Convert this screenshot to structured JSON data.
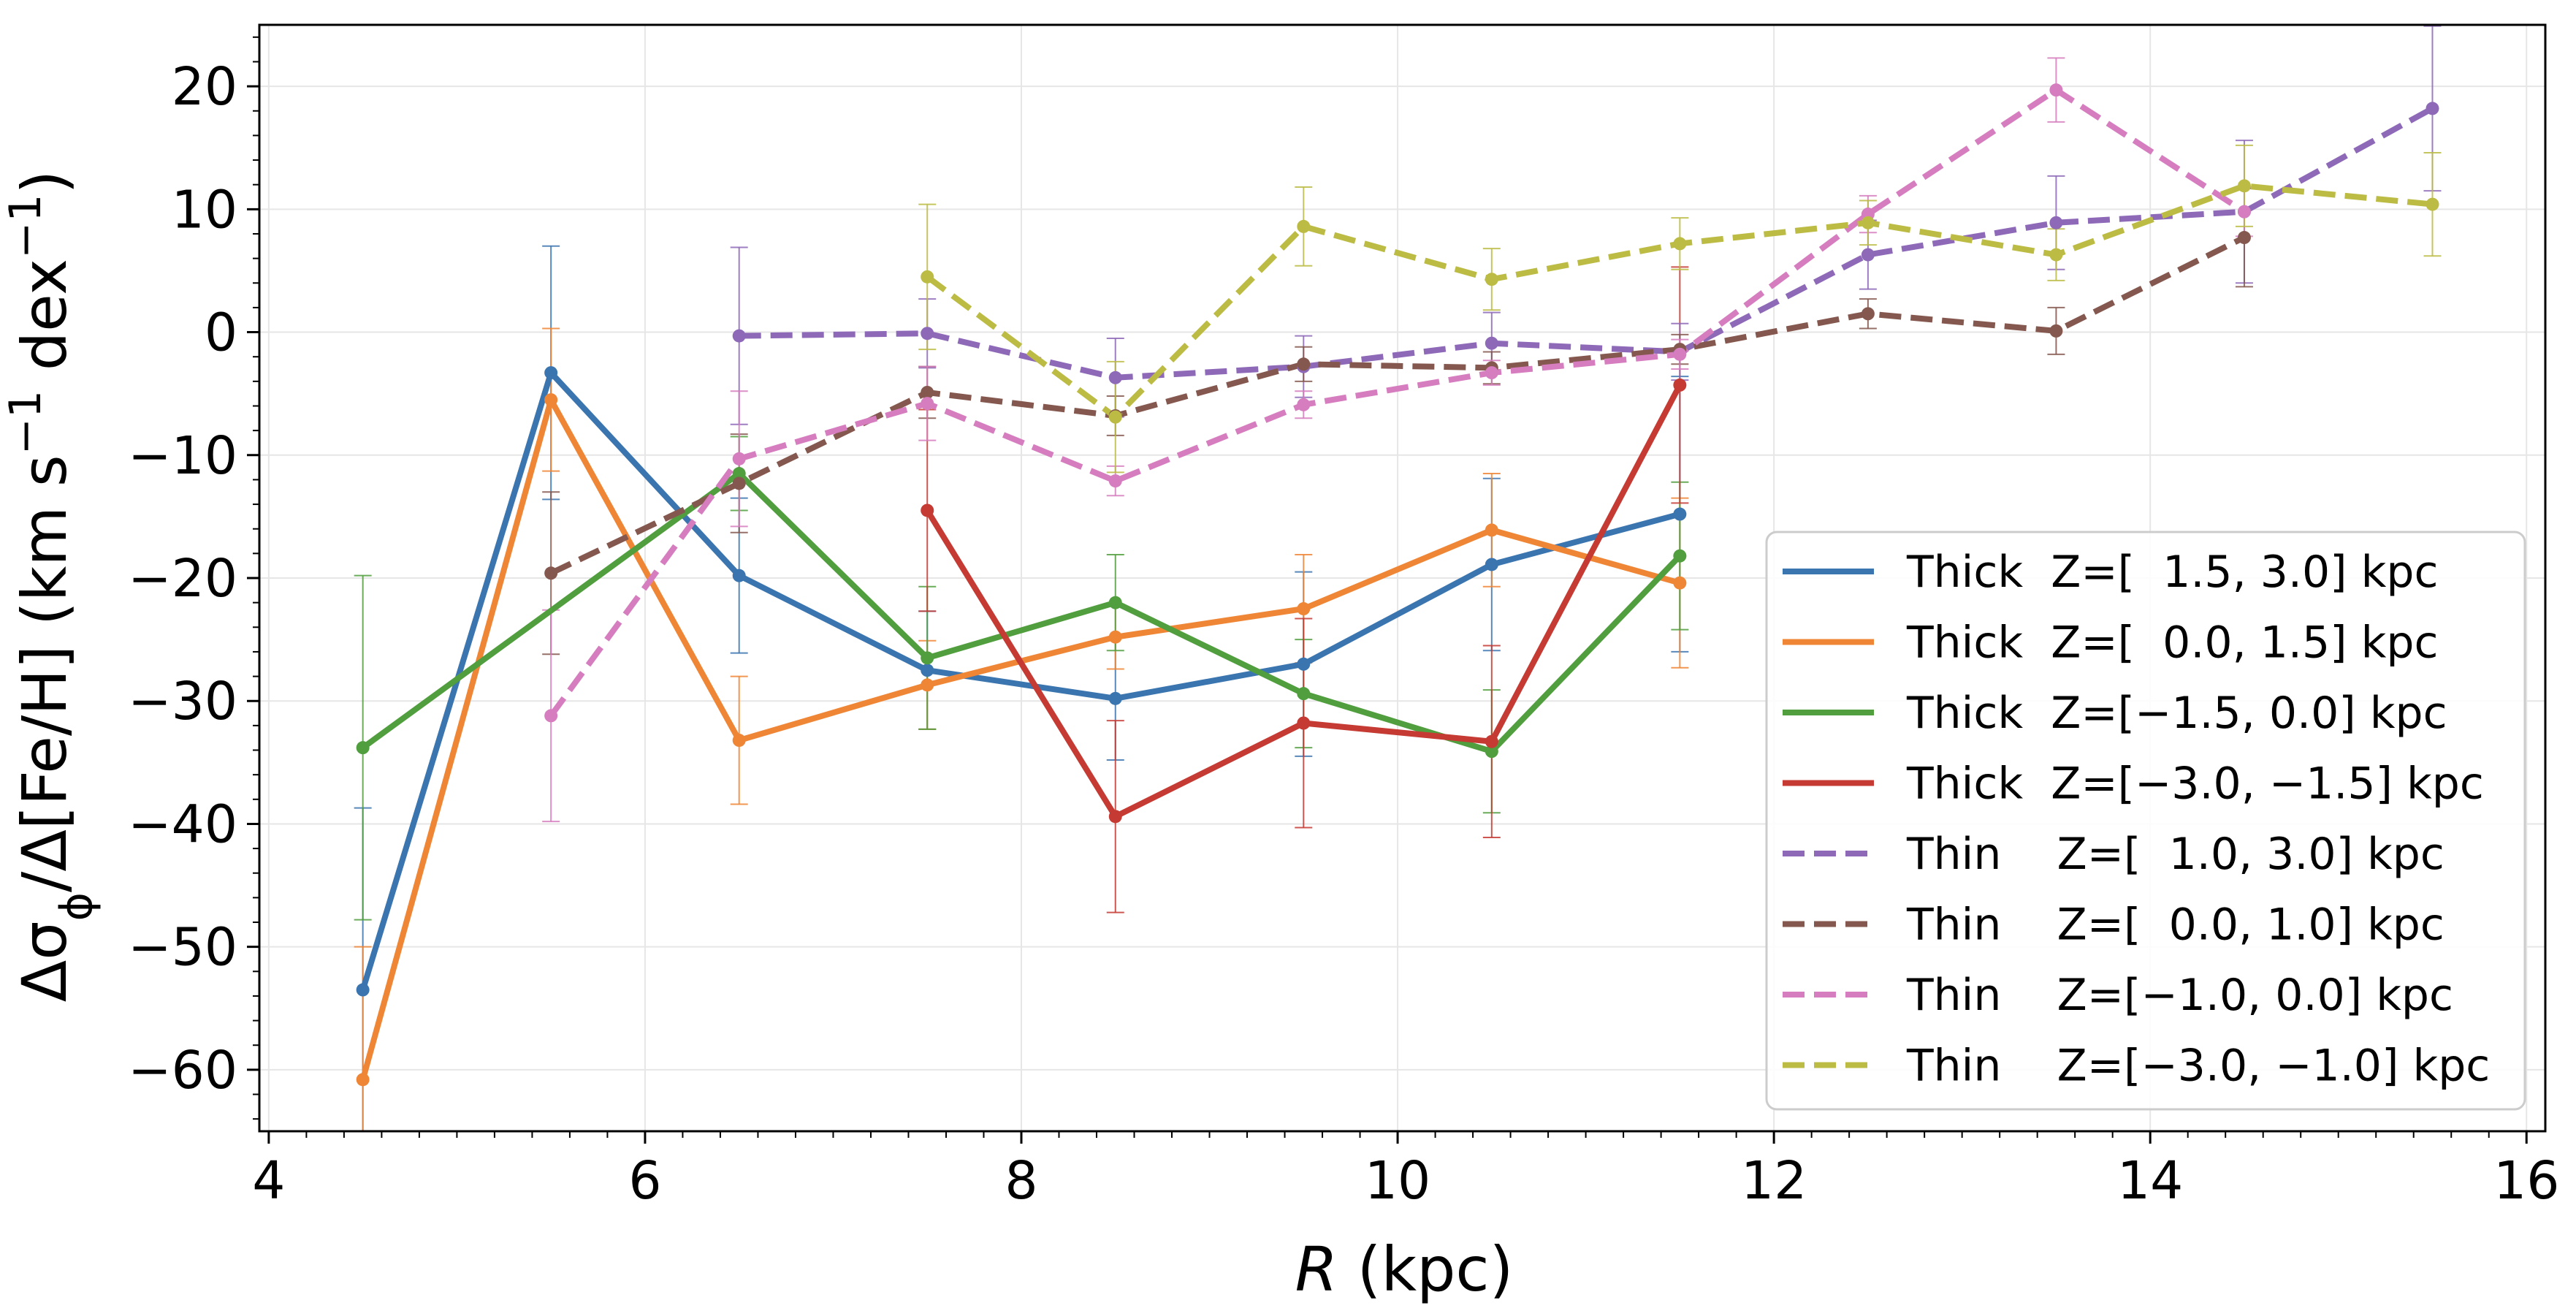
{
  "chart_data": {
    "type": "line",
    "title": "",
    "xlabel_italic": "R",
    "xlabel_unit": " (kpc)",
    "ylabel_parts": {
      "delta": "Δσ",
      "phi": "ϕ",
      "mid": "/Δ[Fe/H] (km s",
      "exp1": "−1",
      "mid2": " dex",
      "exp2": "−1",
      "end": ")"
    },
    "xlim": [
      3.95,
      16.1
    ],
    "ylim": [
      -65,
      25
    ],
    "xticks": [
      4,
      6,
      8,
      10,
      12,
      14,
      16
    ],
    "yticks": [
      20,
      10,
      0,
      -10,
      -20,
      -30,
      -40,
      -50,
      -60
    ],
    "xtick_labels": [
      "4",
      "6",
      "8",
      "10",
      "12",
      "14",
      "16"
    ],
    "ytick_labels": [
      "20",
      "10",
      "0",
      "−10",
      "−20",
      "−30",
      "−40",
      "−50",
      "−60"
    ],
    "grid": true,
    "legend_position": "lower-right",
    "series": [
      {
        "name": "Thick  Z=[  1.5, 3.0] kpc",
        "color": "#3b75af",
        "dashed": false,
        "x": [
          4.5,
          5.5,
          6.5,
          7.5,
          8.5,
          9.5,
          10.5,
          11.5
        ],
        "y": [
          -53.5,
          -3.3,
          -19.8,
          -27.5,
          -29.8,
          -27.0,
          -18.9,
          -14.8
        ],
        "err": [
          14.8,
          10.3,
          6.3,
          4.8,
          5.0,
          7.5,
          7.0,
          11.2
        ]
      },
      {
        "name": "Thick  Z=[  0.0, 1.5] kpc",
        "color": "#ef8636",
        "dashed": false,
        "x": [
          4.5,
          5.5,
          6.5,
          7.5,
          8.5,
          9.5,
          10.5,
          11.5
        ],
        "y": [
          -60.8,
          -5.5,
          -33.2,
          -28.7,
          -24.8,
          -22.5,
          -16.1,
          -20.4
        ],
        "err": [
          10.8,
          5.8,
          5.2,
          3.6,
          2.6,
          4.4,
          4.6,
          6.9
        ]
      },
      {
        "name": "Thick  Z=[−1.5, 0.0] kpc",
        "color": "#519e3e",
        "dashed": false,
        "x": [
          4.5,
          6.5,
          7.5,
          8.5,
          9.5,
          10.5,
          11.5
        ],
        "y": [
          -33.8,
          -11.5,
          -26.5,
          -22.0,
          -29.4,
          -34.1,
          -18.2
        ],
        "err": [
          14.0,
          3.0,
          5.8,
          3.9,
          4.4,
          5.0,
          6.0
        ]
      },
      {
        "name": "Thick  Z=[−3.0, −1.5] kpc",
        "color": "#c53a32",
        "dashed": false,
        "x": [
          7.5,
          8.5,
          9.5,
          10.5,
          11.5
        ],
        "y": [
          -14.5,
          -39.4,
          -31.8,
          -33.3,
          -4.3
        ],
        "err": [
          8.2,
          7.8,
          8.5,
          7.8,
          9.6
        ]
      },
      {
        "name": "Thin    Z=[  1.0, 3.0] kpc",
        "color": "#8d69b8",
        "dashed": true,
        "x": [
          6.5,
          7.5,
          8.5,
          9.5,
          10.5,
          11.5,
          12.5,
          13.5,
          14.5,
          15.5
        ],
        "y": [
          -0.3,
          -0.1,
          -3.7,
          -2.8,
          -0.9,
          -1.6,
          6.3,
          8.9,
          9.8,
          18.2
        ],
        "err": [
          7.2,
          2.8,
          3.2,
          2.5,
          2.5,
          2.3,
          2.8,
          3.8,
          5.8,
          6.7
        ]
      },
      {
        "name": "Thin    Z=[  0.0, 1.0] kpc",
        "color": "#84584e",
        "dashed": true,
        "x": [
          5.5,
          6.5,
          7.5,
          8.5,
          9.5,
          10.5,
          11.5,
          12.5,
          13.5,
          14.5
        ],
        "y": [
          -19.6,
          -12.3,
          -4.9,
          -6.8,
          -2.6,
          -2.9,
          -1.4,
          1.5,
          0.1,
          7.7
        ],
        "err": [
          6.6,
          4.0,
          2.1,
          1.6,
          1.4,
          1.3,
          1.2,
          1.2,
          1.9,
          4.0
        ]
      },
      {
        "name": "Thin    Z=[−1.0, 0.0] kpc",
        "color": "#d57dbe",
        "dashed": true,
        "x": [
          5.5,
          6.5,
          7.5,
          8.5,
          9.5,
          10.5,
          11.5,
          12.5,
          13.5,
          14.5
        ],
        "y": [
          -31.2,
          -10.3,
          -5.8,
          -12.1,
          -5.9,
          -3.3,
          -1.8,
          9.6,
          19.7,
          9.8
        ],
        "err": [
          8.6,
          5.5,
          3.0,
          1.2,
          1.1,
          1.0,
          1.2,
          1.5,
          2.6,
          2.0
        ]
      },
      {
        "name": "Thin    Z=[−3.0, −1.0] kpc",
        "color": "#bcbc45",
        "dashed": true,
        "x": [
          7.5,
          8.5,
          9.5,
          10.5,
          11.5,
          12.5,
          13.5,
          14.5,
          15.5
        ],
        "y": [
          4.5,
          -6.9,
          8.6,
          4.3,
          7.2,
          8.9,
          6.3,
          11.9,
          10.4
        ],
        "err": [
          5.9,
          4.5,
          3.2,
          2.5,
          2.1,
          1.8,
          2.1,
          3.3,
          4.2
        ]
      }
    ]
  }
}
